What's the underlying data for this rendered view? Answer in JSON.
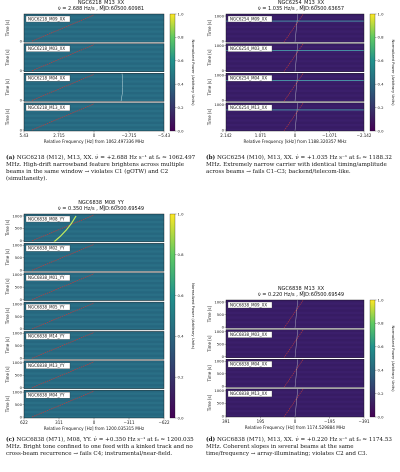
{
  "panels": [
    {
      "id": "a",
      "title": "NGC6218_M13_XX",
      "subtitle": "ν̇ = 2.688 Hz/s , MJD:60500.60981",
      "xlabel": "Relative Frequency [Hz] from 1062.497336 MHz",
      "xticks": [
        "5.43",
        "2.715",
        "0",
        "−2.715",
        "−5.43"
      ],
      "ylabel": "Time [s]",
      "colorbar_label": "Normalized Power (Arbitrary Units)",
      "colorbar_ticks": [
        "1.0",
        "0.8",
        "0.6",
        "0.4",
        "0.2",
        "0.0"
      ],
      "beams": [
        {
          "label": "NGC6218_M09_XX",
          "yticks": [
            "0"
          ]
        },
        {
          "label": "NGC6218_M03_XX",
          "yticks": [
            "0"
          ]
        },
        {
          "label": "NGC6218_M04_XX",
          "yticks": [
            "0"
          ]
        },
        {
          "label": "NGC6218_M13_XX",
          "yticks": [
            "0"
          ]
        }
      ],
      "caption_label": "(a)",
      "caption": "NGC6218 (M12), M13, XX. ν̇ = +2.688 Hz s⁻¹ at f₀ ≃ 1062.497 MHz. High-drift narrowband feature brightens across multiple beams in the same window → violates C1 (gOTW) and C2 (simultaneity)."
    },
    {
      "id": "b",
      "title": "NGC6254_M13_XX",
      "subtitle": "ν̇ = 1.035 Hz/s , MJD:60500.63657",
      "xlabel": "Relative Frequency [kHz] from 1188.320357 MHz",
      "xticks": [
        "2.142",
        "1.071",
        "0",
        "−1.071",
        "−2.142"
      ],
      "ylabel": "Time [s]",
      "colorbar_label": "Normalized Power (Arbitrary Units)",
      "colorbar_ticks": [
        "1.0",
        "0.8",
        "0.6",
        "0.4",
        "0.2",
        "0.0"
      ],
      "beams": [
        {
          "label": "NGC6254_M09_XX",
          "yticks": [
            "1000",
            "0"
          ]
        },
        {
          "label": "NGC6254_M03_XX",
          "yticks": [
            "1000",
            "0"
          ]
        },
        {
          "label": "NGC6254_M04_XX",
          "yticks": [
            "1000",
            "0"
          ]
        },
        {
          "label": "NGC6254_M13_XX",
          "yticks": [
            "1000",
            "0"
          ]
        }
      ],
      "caption_label": "(b)",
      "caption": "NGC6254 (M10), M13, XX. ν̇ = +1.035 Hz s⁻¹ at f₀ ≃ 1188.32 MHz. Extremely narrow carrier with identical timing/amplitude across beams → fails C1–C3; backend/telecom-like."
    },
    {
      "id": "c",
      "title": "NGC6838_M08_YY",
      "subtitle": "ν̇ = 0.350 Hz/s , MJD:60500.69549",
      "xlabel": "Relative Frequency [Hz] from 1200.035315 MHz",
      "xticks": [
        "622",
        "311",
        "0",
        "−311",
        "−622"
      ],
      "ylabel": "Time [s]",
      "colorbar_label": "Normalized Power (Arbitrary Units)",
      "colorbar_ticks": [
        "1.0",
        "0.8",
        "0.6",
        "0.4",
        "0.2",
        "0.0"
      ],
      "beams": [
        {
          "label": "NGC6838_M08_YY",
          "yticks": [
            "1000",
            "500",
            "0"
          ]
        },
        {
          "label": "NGC6838_M02_YY",
          "yticks": [
            "1000",
            "500",
            "0"
          ]
        },
        {
          "label": "NGC6838_M01_YY",
          "yticks": [
            "1000",
            "500",
            "0"
          ]
        },
        {
          "label": "NGC6838_M05_YY",
          "yticks": [
            "1000",
            "500",
            "0"
          ]
        },
        {
          "label": "NGC6838_M14_YY",
          "yticks": [
            "1000",
            "500",
            "0"
          ]
        },
        {
          "label": "NGC6838_M13_YY",
          "yticks": [
            "1000",
            "500",
            "0"
          ]
        },
        {
          "label": "NGC6838_M04_YY",
          "yticks": [
            "1000",
            "500",
            "0"
          ]
        }
      ],
      "caption_label": "(c)",
      "caption": "NGC6838 (M71), M08, YY. ν̇ = +0.350 Hz s⁻¹ at f₀ ≃ 1200.035 MHz. Bright tone confined to one feed with a kinked track and no cross-beam recurrence → fails C4; instrumental/near-field."
    },
    {
      "id": "d",
      "title": "NGC6838_M13_XX",
      "subtitle": "ν̇ = 0.220 Hz/s , MJD:60500.69549",
      "xlabel": "Relative Frequency [Hz] from 1174.529884 MHz",
      "xticks": [
        "391",
        "195",
        "0",
        "−195",
        "−391"
      ],
      "ylabel": "Time [s]",
      "colorbar_label": "Normalized Power (Arbitrary Units)",
      "colorbar_ticks": [
        "1.0",
        "0.8",
        "0.6",
        "0.4",
        "0.2",
        "0.0"
      ],
      "beams": [
        {
          "label": "NGC6838_M09_XX",
          "yticks": [
            "1000",
            "500",
            "0"
          ]
        },
        {
          "label": "NGC6838_M03_XX",
          "yticks": [
            "1000",
            "500",
            "0"
          ]
        },
        {
          "label": "NGC6838_M04_XX",
          "yticks": [
            "1000",
            "500",
            "0"
          ]
        },
        {
          "label": "NGC6838_M13_XX",
          "yticks": [
            "1000",
            "500",
            "0"
          ]
        }
      ],
      "caption_label": "(d)",
      "caption": "NGC6838 (M71), M13, XX. ν̇ = +0.220 Hz s⁻¹ at f₀ ≃ 1174.53 MHz. Coherent slopes in several beams at the same time/frequency → array-illuminating; violates C2 and C3."
    }
  ],
  "colors": {
    "viridis_low": "#440154",
    "viridis_dark": "#2c5a7a",
    "viridis_mid": "#21918c",
    "viridis_high": "#fde725",
    "track": "#c23a3a"
  }
}
